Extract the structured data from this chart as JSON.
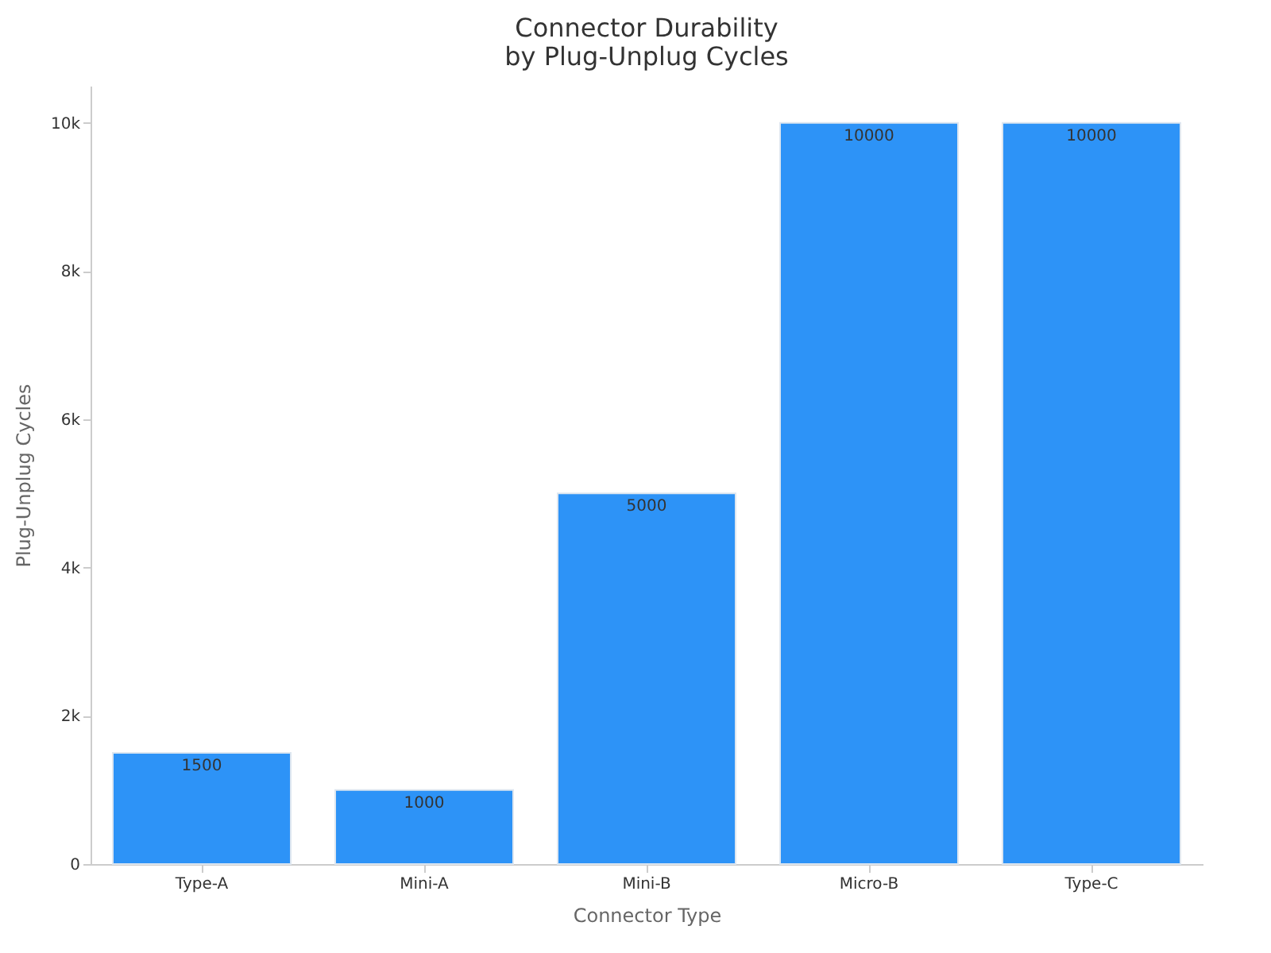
{
  "chart_data": {
    "type": "bar",
    "title": "Connector Durability\nby Plug-Unplug Cycles",
    "xlabel": "Connector Type",
    "ylabel": "Plug-Unplug Cycles",
    "categories": [
      "Type-A",
      "Mini-A",
      "Mini-B",
      "Micro-B",
      "Type-C"
    ],
    "values": [
      1500,
      1000,
      5000,
      10000,
      10000
    ],
    "color": "#2d93f7",
    "ylim": [
      0,
      10500
    ],
    "yticks": [
      0,
      {
        "value": 2000,
        "label": "2k"
      },
      {
        "value": 4000,
        "label": "4k"
      },
      {
        "value": 6000,
        "label": "6k"
      },
      {
        "value": 8000,
        "label": "8k"
      },
      {
        "value": 10000,
        "label": "10k"
      }
    ],
    "data_labels": true,
    "grid": false
  }
}
